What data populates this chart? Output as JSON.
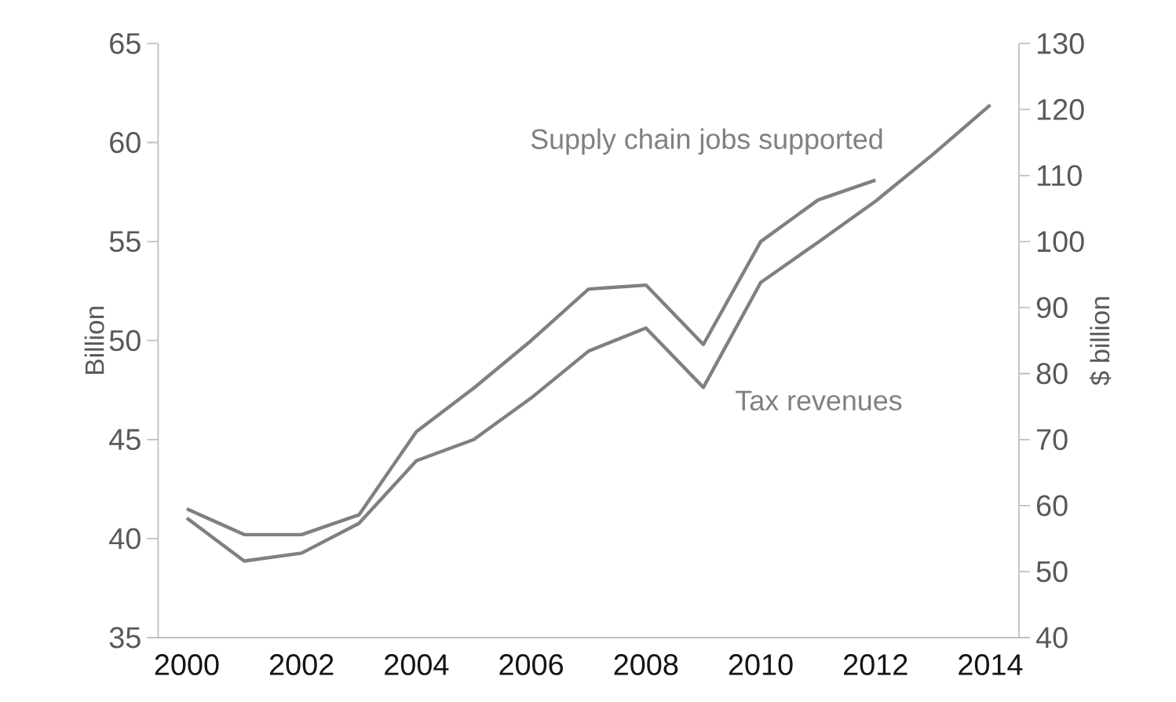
{
  "chart_data": {
    "type": "line",
    "ylabel": "Billion",
    "y2label": "$ billion",
    "categories": [
      "2000",
      null,
      "2002",
      null,
      "2004",
      null,
      "2006",
      null,
      "2008",
      null,
      "2010",
      null,
      "2012",
      null,
      "2014"
    ],
    "ylim": [
      35,
      65
    ],
    "yticks": [
      35,
      40,
      45,
      50,
      55,
      60,
      65
    ],
    "y2lim": [
      40,
      130
    ],
    "y2ticks": [
      40,
      50,
      60,
      70,
      80,
      90,
      100,
      110,
      120,
      130
    ],
    "series": [
      {
        "name": "Supply chain jobs supported",
        "color": "#808080",
        "values": [
          41.5,
          40.2,
          40.2,
          41.2,
          45.4,
          47.6,
          50.0,
          52.6,
          52.8,
          49.8,
          55.0,
          57.1,
          58.1,
          null,
          null
        ]
      },
      {
        "name": "Tax revenues",
        "color": "#808080",
        "axis": "y2",
        "values": [
          58.1,
          51.6,
          52.8,
          57.3,
          66.8,
          70.0,
          76.3,
          83.4,
          86.9,
          77.9,
          93.8,
          99.9,
          106.1,
          113.2,
          120.7
        ]
      }
    ]
  }
}
